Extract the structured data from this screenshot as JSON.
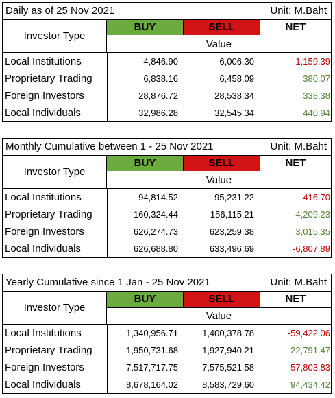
{
  "colors": {
    "buy_bg": "#6aaa3f",
    "sell_bg": "#d21414",
    "negative": "#c00000",
    "positive": "#548235"
  },
  "tables": [
    {
      "title": "Daily as of 25 Nov 2021",
      "unit": "Unit: M.Baht",
      "investor_type_label": "Investor Type",
      "buy_label": "BUY",
      "sell_label": "SELL",
      "net_label": "NET",
      "value_label": "Value",
      "rows": [
        {
          "label": "Local Institutions",
          "buy": "4,846.90",
          "sell": "6,006.30",
          "net": "-1,159.39"
        },
        {
          "label": "Proprietary Trading",
          "buy": "6,838.16",
          "sell": "6,458.09",
          "net": "380.07"
        },
        {
          "label": "Foreign Investors",
          "buy": "28,876.72",
          "sell": "28,538.34",
          "net": "338.38"
        },
        {
          "label": "Local Individuals",
          "buy": "32,986.28",
          "sell": "32,545.34",
          "net": "440.94"
        }
      ]
    },
    {
      "title": "Monthly Cumulative between 1 - 25 Nov 2021",
      "unit": "Unit: M.Baht",
      "investor_type_label": "Investor Type",
      "buy_label": "BUY",
      "sell_label": "SELL",
      "net_label": "NET",
      "value_label": "Value",
      "rows": [
        {
          "label": "Local Institutions",
          "buy": "94,814.52",
          "sell": "95,231.22",
          "net": "-416.70"
        },
        {
          "label": "Proprietary Trading",
          "buy": "160,324.44",
          "sell": "156,115.21",
          "net": "4,209.23"
        },
        {
          "label": "Foreign Investors",
          "buy": "626,274.73",
          "sell": "623,259.38",
          "net": "3,015.35"
        },
        {
          "label": "Local Individuals",
          "buy": "626,688.80",
          "sell": "633,496.69",
          "net": "-6,807.89"
        }
      ]
    },
    {
      "title": "Yearly Cumulative since 1 Jan - 25 Nov 2021",
      "unit": "Unit: M.Baht",
      "investor_type_label": "Investor Type",
      "buy_label": "BUY",
      "sell_label": "SELL",
      "net_label": "NET",
      "value_label": "Value",
      "rows": [
        {
          "label": "Local Institutions",
          "buy": "1,340,956.71",
          "sell": "1,400,378.78",
          "net": "-59,422.06"
        },
        {
          "label": "Proprietary Trading",
          "buy": "1,950,731.68",
          "sell": "1,927,940.21",
          "net": "22,791.47"
        },
        {
          "label": "Foreign Investors",
          "buy": "7,517,717.75",
          "sell": "7,575,521.58",
          "net": "-57,803.83"
        },
        {
          "label": "Local Individuals",
          "buy": "8,678,164.02",
          "sell": "8,583,729.60",
          "net": "94,434.42"
        }
      ]
    }
  ]
}
